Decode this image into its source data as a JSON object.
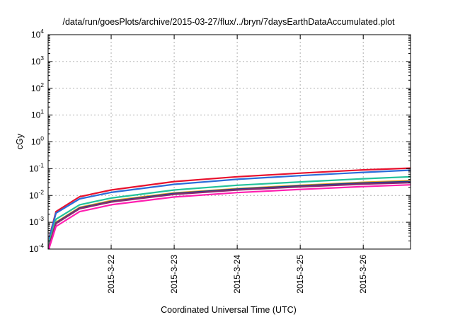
{
  "chart_data": {
    "type": "line",
    "title": "/data/run/goesPlots/archive/2015-03-27/flux/../bryn/7daysEarthDataAccumulated.plot",
    "xlabel": "Coordinated Universal Time (UTC)",
    "ylabel": "cGy",
    "y_scale": "log",
    "ylim": [
      0.0001,
      10000
    ],
    "y_ticks": [
      {
        "base": "10",
        "exp": "-4"
      },
      {
        "base": "10",
        "exp": "-3"
      },
      {
        "base": "10",
        "exp": "-2"
      },
      {
        "base": "10",
        "exp": "-1"
      },
      {
        "base": "10",
        "exp": "0"
      },
      {
        "base": "10",
        "exp": "1"
      },
      {
        "base": "10",
        "exp": "2"
      },
      {
        "base": "10",
        "exp": "3"
      },
      {
        "base": "10",
        "exp": "4"
      }
    ],
    "x_ticks": [
      "2015-3-22",
      "2015-3-23",
      "2015-3-24",
      "2015-3-25",
      "2015-3-26"
    ],
    "xlim": [
      "2015-03-21T00:00",
      "2015-03-26T18:00"
    ],
    "grid": true,
    "series": [
      {
        "color": "#e8112d",
        "x": [
          "2015-03-21T00:30",
          "2015-03-21T03:00",
          "2015-03-21T12:00",
          "2015-03-22T00:00",
          "2015-03-23T00:00",
          "2015-03-24T00:00",
          "2015-03-25T00:00",
          "2015-03-26T00:00",
          "2015-03-26T18:00"
        ],
        "y": [
          0.0003,
          0.0025,
          0.009,
          0.016,
          0.033,
          0.05,
          0.068,
          0.09,
          0.105
        ]
      },
      {
        "color": "#2a6dd9",
        "x": [
          "2015-03-21T00:30",
          "2015-03-21T03:00",
          "2015-03-21T12:00",
          "2015-03-22T00:00",
          "2015-03-23T00:00",
          "2015-03-24T00:00",
          "2015-03-25T00:00",
          "2015-03-26T00:00",
          "2015-03-26T18:00"
        ],
        "y": [
          0.00028,
          0.0022,
          0.0075,
          0.013,
          0.026,
          0.04,
          0.055,
          0.073,
          0.088
        ]
      },
      {
        "color": "#22c29a",
        "x": [
          "2015-03-21T00:30",
          "2015-03-21T03:00",
          "2015-03-21T12:00",
          "2015-03-22T00:00",
          "2015-03-23T00:00",
          "2015-03-24T00:00",
          "2015-03-25T00:00",
          "2015-03-26T00:00",
          "2015-03-26T18:00"
        ],
        "y": [
          0.0002,
          0.0013,
          0.0045,
          0.008,
          0.016,
          0.024,
          0.032,
          0.042,
          0.05
        ]
      },
      {
        "color": "#e8a020",
        "x": [
          "2015-03-21T00:30",
          "2015-03-21T03:00",
          "2015-03-21T12:00",
          "2015-03-22T00:00",
          "2015-03-23T00:00",
          "2015-03-24T00:00",
          "2015-03-25T00:00",
          "2015-03-26T00:00",
          "2015-03-26T18:00"
        ],
        "y": [
          0.00016,
          0.001,
          0.0036,
          0.0064,
          0.0125,
          0.018,
          0.024,
          0.031,
          0.036
        ]
      },
      {
        "color": "#1e3f8c",
        "x": [
          "2015-03-21T00:30",
          "2015-03-21T03:00",
          "2015-03-21T12:00",
          "2015-03-22T00:00",
          "2015-03-23T00:00",
          "2015-03-24T00:00",
          "2015-03-25T00:00",
          "2015-03-26T00:00",
          "2015-03-26T18:00"
        ],
        "y": [
          0.00015,
          0.00095,
          0.0034,
          0.006,
          0.0118,
          0.0172,
          0.0228,
          0.029,
          0.033
        ]
      },
      {
        "color": "#8a2b6e",
        "x": [
          "2015-03-21T00:30",
          "2015-03-21T03:00",
          "2015-03-21T12:00",
          "2015-03-22T00:00",
          "2015-03-23T00:00",
          "2015-03-24T00:00",
          "2015-03-25T00:00",
          "2015-03-26T00:00",
          "2015-03-26T18:00"
        ],
        "y": [
          0.00014,
          0.0009,
          0.0032,
          0.0057,
          0.011,
          0.016,
          0.021,
          0.0265,
          0.03
        ]
      },
      {
        "color": "#ff1fb0",
        "x": [
          "2015-03-21T00:30",
          "2015-03-21T03:00",
          "2015-03-21T12:00",
          "2015-03-22T00:00",
          "2015-03-23T00:00",
          "2015-03-24T00:00",
          "2015-03-25T00:00",
          "2015-03-26T00:00",
          "2015-03-26T18:00"
        ],
        "y": [
          0.00012,
          0.0007,
          0.0025,
          0.0045,
          0.0088,
          0.0128,
          0.0168,
          0.0215,
          0.025
        ]
      }
    ]
  }
}
